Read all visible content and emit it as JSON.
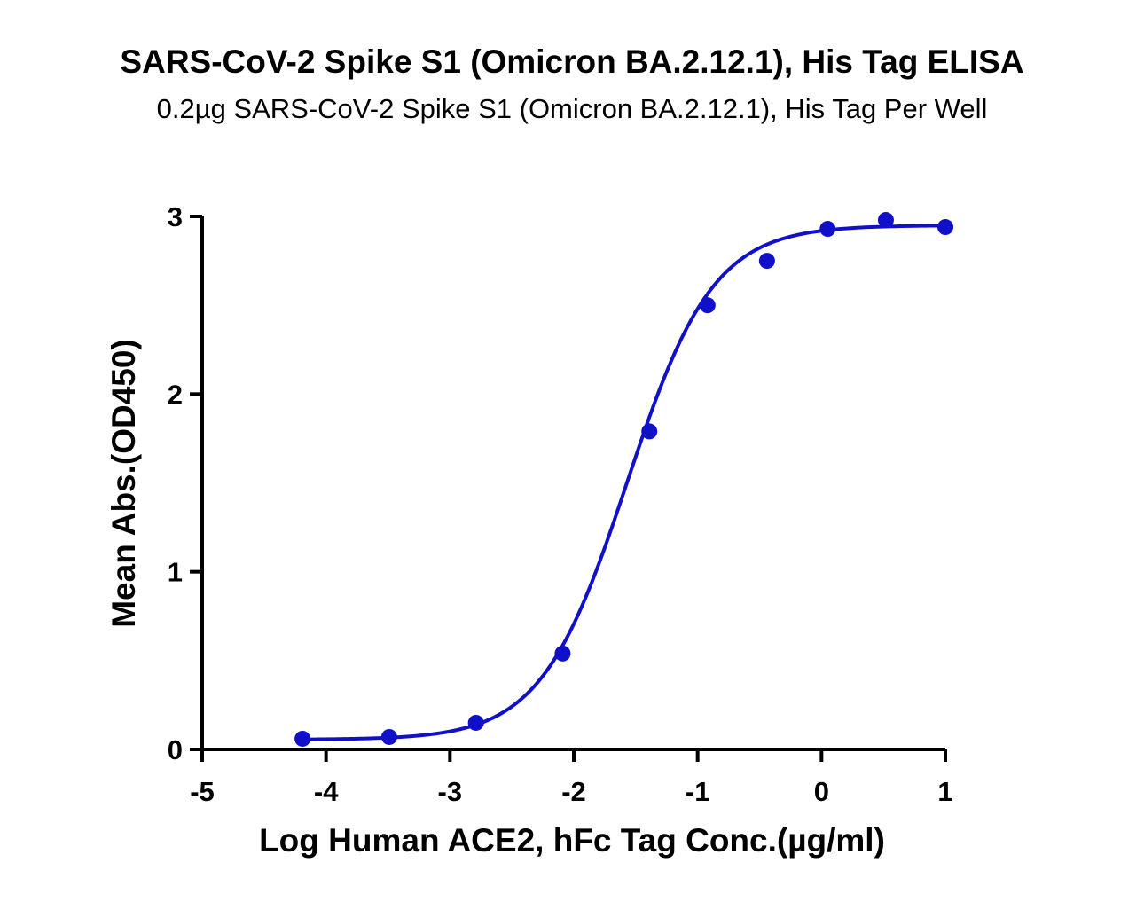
{
  "chart_data": {
    "type": "scatter",
    "title": "SARS-CoV-2 Spike S1 (Omicron BA.2.12.1), His Tag ELISA",
    "subtitle": "0.2µg SARS-CoV-2 Spike S1 (Omicron BA.2.12.1), His Tag Per Well",
    "xlabel": "Log Human ACE2, hFc Tag Conc.(µg/ml)",
    "ylabel": "Mean Abs.(OD450)",
    "xlim": [
      -5,
      1
    ],
    "ylim": [
      0,
      3
    ],
    "x_ticks": [
      -5,
      -4,
      -3,
      -2,
      -1,
      0,
      1
    ],
    "x_tick_labels": [
      "-5",
      "-4",
      "-3",
      "-2",
      "-1",
      "0",
      "1"
    ],
    "y_ticks": [
      0,
      1,
      2,
      3
    ],
    "y_tick_labels": [
      "0",
      "1",
      "2",
      "3"
    ],
    "grid": false,
    "series": [
      {
        "name": "Mean Abs.",
        "color": "#1010c8",
        "points": [
          {
            "x": -4.19,
            "y": 0.06
          },
          {
            "x": -3.49,
            "y": 0.07
          },
          {
            "x": -2.79,
            "y": 0.15
          },
          {
            "x": -2.09,
            "y": 0.54
          },
          {
            "x": -1.39,
            "y": 1.79
          },
          {
            "x": -0.92,
            "y": 2.5
          },
          {
            "x": -0.44,
            "y": 2.75
          },
          {
            "x": 0.05,
            "y": 2.93
          },
          {
            "x": 0.52,
            "y": 2.98
          },
          {
            "x": 1.0,
            "y": 2.94
          }
        ],
        "fit": {
          "model": "4PL",
          "bottom": 0.055,
          "top": 2.95,
          "log_ec50": -1.57,
          "hill_slope": 1.25,
          "x_range": [
            -4.19,
            1.0
          ]
        }
      }
    ]
  }
}
